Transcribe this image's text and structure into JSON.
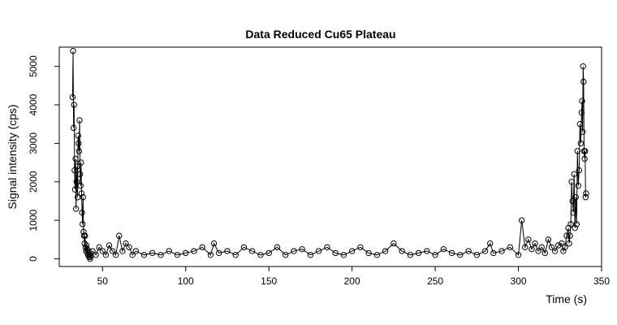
{
  "chart_data": {
    "type": "scatter",
    "title": "Data Reduced Cu65 Plateau",
    "xlabel": "Time (s)",
    "ylabel": "Signal intensity (cps)",
    "xlim": [
      24,
      350
    ],
    "ylim": [
      -200,
      5500
    ],
    "xticks": [
      50,
      100,
      150,
      200,
      250,
      300,
      350
    ],
    "yticks": [
      0,
      1000,
      2000,
      3000,
      4000,
      5000
    ],
    "grid": false,
    "legend": "none",
    "series": [
      {
        "style": "points-and-lines",
        "x": [
          32.0,
          32.3,
          32.6,
          32.9,
          33.2,
          33.5,
          33.8,
          34.1,
          34.4,
          34.7,
          35.0,
          35.3,
          35.6,
          35.9,
          36.2,
          36.5,
          36.8,
          37.1,
          37.4,
          37.7,
          38.0,
          38.3,
          38.6,
          38.9,
          39.2,
          39.5,
          39.8,
          40.1,
          40.4,
          40.7,
          41.0,
          41.3,
          41.6,
          41.9,
          42.2,
          42.5,
          42.8,
          44,
          46,
          48,
          50,
          52,
          54,
          56,
          58,
          60,
          62,
          64,
          66,
          68,
          70,
          75,
          80,
          85,
          90,
          95,
          100,
          105,
          110,
          115,
          117,
          120,
          125,
          130,
          135,
          140,
          145,
          150,
          155,
          160,
          165,
          170,
          175,
          180,
          185,
          190,
          195,
          200,
          205,
          210,
          215,
          220,
          225,
          230,
          235,
          240,
          245,
          250,
          255,
          260,
          265,
          270,
          275,
          280,
          283,
          285,
          290,
          295,
          300,
          302,
          304,
          306,
          308,
          310,
          312,
          314,
          316,
          318,
          320,
          322,
          324,
          326,
          327,
          328,
          329,
          330,
          330.5,
          331,
          331.5,
          332,
          332.5,
          333,
          333.5,
          334,
          334.5,
          335,
          335.5,
          336,
          336.5,
          337,
          337.5,
          338,
          338.3,
          338.6,
          338.9,
          339.2,
          339.5,
          339.8,
          340.1,
          340.4,
          340.7
        ],
        "y": [
          4200,
          5400,
          3400,
          4000,
          2300,
          1800,
          2600,
          1300,
          2000,
          2400,
          1600,
          3200,
          3000,
          2800,
          3600,
          2200,
          1900,
          2500,
          1700,
          1200,
          900,
          1600,
          700,
          600,
          400,
          600,
          300,
          200,
          350,
          250,
          150,
          100,
          200,
          50,
          100,
          0,
          50,
          200,
          100,
          300,
          200,
          100,
          350,
          200,
          100,
          600,
          200,
          400,
          300,
          100,
          200,
          100,
          150,
          100,
          200,
          100,
          150,
          200,
          300,
          100,
          400,
          150,
          200,
          100,
          300,
          200,
          100,
          150,
          300,
          100,
          200,
          250,
          100,
          200,
          300,
          150,
          100,
          200,
          300,
          150,
          100,
          200,
          400,
          200,
          100,
          150,
          200,
          100,
          250,
          150,
          100,
          200,
          100,
          200,
          400,
          150,
          200,
          300,
          100,
          1000,
          300,
          500,
          250,
          400,
          200,
          300,
          150,
          500,
          300,
          200,
          350,
          400,
          200,
          300,
          600,
          800,
          400,
          600,
          900,
          2000,
          1500,
          1200,
          2200,
          800,
          1600,
          900,
          2800,
          1900,
          2300,
          3500,
          3000,
          3800,
          4100,
          3300,
          5000,
          4600,
          2800,
          2600,
          2800,
          1600,
          1700
        ]
      }
    ]
  }
}
